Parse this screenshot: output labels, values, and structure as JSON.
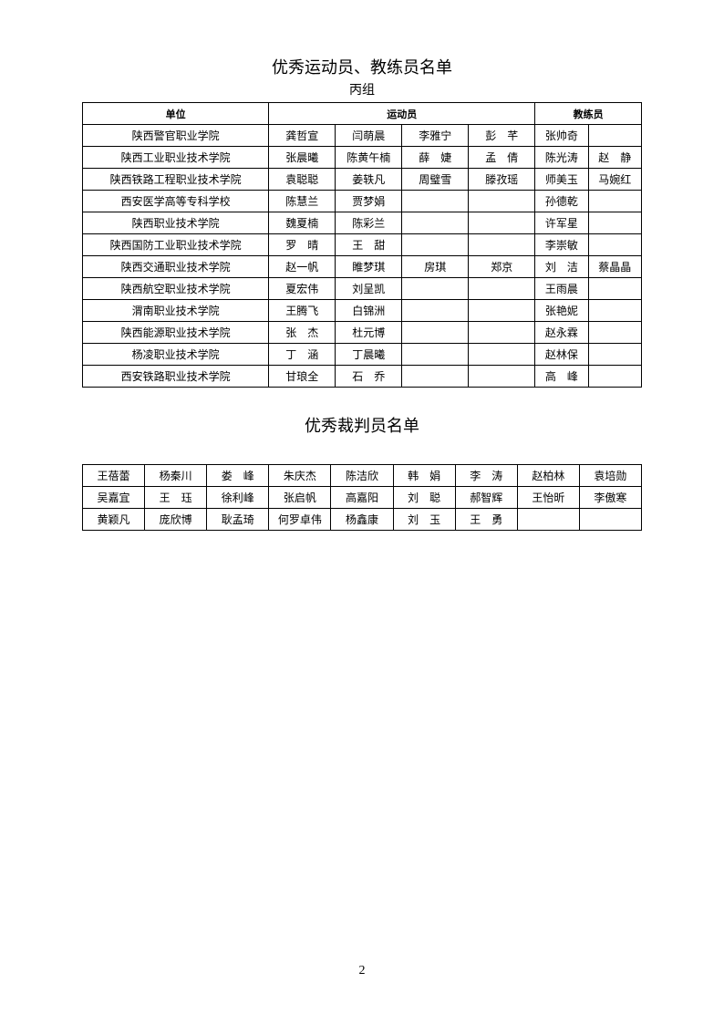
{
  "title": "优秀运动员、教练员名单",
  "subtitle": "丙组",
  "headers": {
    "unit": "单位",
    "athlete": "运动员",
    "coach": "教练员"
  },
  "rows": [
    {
      "unit": "陕西警官职业学院",
      "athletes": [
        "龚哲宣",
        "闫萌晨",
        "李雅宁",
        "彭　芊"
      ],
      "coaches": [
        "张帅奇",
        ""
      ]
    },
    {
      "unit": "陕西工业职业技术学院",
      "athletes": [
        "张晨曦",
        "陈黄午楠",
        "薛　婕",
        "孟　倩"
      ],
      "coaches": [
        "陈光涛",
        "赵　静"
      ]
    },
    {
      "unit": "陕西铁路工程职业技术学院",
      "athletes": [
        "袁聪聪",
        "姜轶凡",
        "周璧雪",
        "滕孜瑶"
      ],
      "coaches": [
        "师美玉",
        "马婉红"
      ]
    },
    {
      "unit": "西安医学高等专科学校",
      "athletes": [
        "陈慧兰",
        "贾梦娟",
        "",
        ""
      ],
      "coaches": [
        "孙德乾",
        ""
      ]
    },
    {
      "unit": "陕西职业技术学院",
      "athletes": [
        "魏夏楠",
        "陈彩兰",
        "",
        ""
      ],
      "coaches": [
        "许军星",
        ""
      ]
    },
    {
      "unit": "陕西国防工业职业技术学院",
      "athletes": [
        "罗　晴",
        "王　甜",
        "",
        ""
      ],
      "coaches": [
        "李崇敏",
        ""
      ]
    },
    {
      "unit": "陕西交通职业技术学院",
      "athletes": [
        "赵一帆",
        "睢梦琪",
        "房琪",
        "郑京"
      ],
      "coaches": [
        "刘　洁",
        "蔡晶晶"
      ]
    },
    {
      "unit": "陕西航空职业技术学院",
      "athletes": [
        "夏宏伟",
        "刘呈凯",
        "",
        ""
      ],
      "coaches": [
        "王雨晨",
        ""
      ]
    },
    {
      "unit": "渭南职业技术学院",
      "athletes": [
        "王腾飞",
        "白锦洲",
        "",
        ""
      ],
      "coaches": [
        "张艳妮",
        ""
      ]
    },
    {
      "unit": "陕西能源职业技术学院",
      "athletes": [
        "张　杰",
        "杜元博",
        "",
        ""
      ],
      "coaches": [
        "赵永霖",
        ""
      ]
    },
    {
      "unit": "杨凌职业技术学院",
      "athletes": [
        "丁　涵",
        "丁晨曦",
        "",
        ""
      ],
      "coaches": [
        "赵林保",
        ""
      ]
    },
    {
      "unit": "西安铁路职业技术学院",
      "athletes": [
        "甘琅全",
        "石　乔",
        "",
        ""
      ],
      "coaches": [
        "高　峰",
        ""
      ]
    }
  ],
  "refereeTitle": "优秀裁判员名单",
  "refereeRows": [
    [
      "王蓓蕾",
      "杨秦川",
      "娄　峰",
      "朱庆杰",
      "陈洁欣",
      "韩　娟",
      "李　涛",
      "赵柏林",
      "袁培勋"
    ],
    [
      "吴嘉宜",
      "王　珏",
      "徐利峰",
      "张启帆",
      "高嘉阳",
      "刘　聪",
      "郝智辉",
      "王怡昕",
      "李傲寒"
    ],
    [
      "黄颖凡",
      "庞欣博",
      "耿孟琦",
      "何罗卓伟",
      "杨鑫康",
      "刘　玉",
      "王　勇",
      "",
      ""
    ]
  ],
  "pageNumber": "2"
}
